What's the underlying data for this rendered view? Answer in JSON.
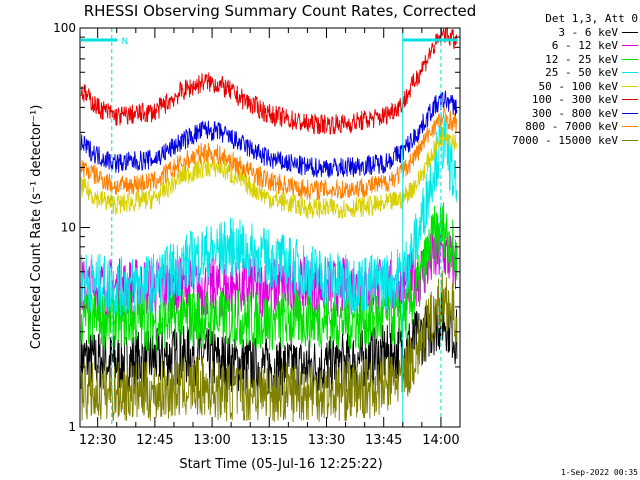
{
  "chart_data": {
    "type": "line",
    "title": "RHESSI Observing Summary Count Rates, Corrected",
    "xlabel": "Start Time (05-Jul-16 12:25:22)",
    "ylabel": "Corrected Count Rate (s⁻¹ detector⁻¹)",
    "y_scale": "log",
    "ylim": [
      1,
      100
    ],
    "y_ticks": [
      "1",
      "10",
      "100"
    ],
    "x_ticks": [
      "12:30",
      "12:45",
      "13:00",
      "13:15",
      "13:30",
      "13:45",
      "14:00"
    ],
    "x_tick_minutes": [
      30,
      45,
      60,
      75,
      90,
      105,
      120
    ],
    "x_range_minutes": [
      25.37,
      125
    ],
    "legend_header": "Det 1,3, Att 0",
    "night_markers_minutes": [
      33.7,
      120
    ],
    "night_bar_labels": [
      "N"
    ],
    "day_bars_minutes": [
      [
        25.6,
        35.2
      ],
      [
        110.0,
        124.3
      ]
    ],
    "day_bar_level": 82,
    "series": [
      {
        "name": "3 - 6 keV",
        "color": "#000000",
        "x": [
          26,
          35,
          45,
          55,
          65,
          75,
          85,
          95,
          105,
          110,
          114,
          118,
          121,
          124
        ],
        "y": [
          2.2,
          2.1,
          2.2,
          2.3,
          2.1,
          2.0,
          2.0,
          2.1,
          2.3,
          2.4,
          2.8,
          3.2,
          3.5,
          2.8
        ]
      },
      {
        "name": "6 - 12 keV",
        "color": "#e000e0",
        "x": [
          26,
          35,
          45,
          55,
          65,
          75,
          85,
          95,
          105,
          110,
          114,
          118,
          121,
          124
        ],
        "y": [
          5.0,
          5.0,
          5.0,
          5.0,
          5.0,
          5.0,
          5.0,
          5.0,
          5.0,
          5.0,
          5.8,
          7.0,
          7.5,
          6.2
        ]
      },
      {
        "name": "12 - 25 keV",
        "color": "#00e000",
        "x": [
          26,
          35,
          45,
          55,
          65,
          75,
          85,
          95,
          105,
          110,
          114,
          118,
          121,
          124
        ],
        "y": [
          3.5,
          3.5,
          3.4,
          3.5,
          3.5,
          3.4,
          3.5,
          3.4,
          3.5,
          3.6,
          5.0,
          9.0,
          10.0,
          7.0
        ]
      },
      {
        "name": "25 - 50 keV",
        "color": "#00e8e8",
        "x": [
          26,
          35,
          45,
          55,
          65,
          75,
          85,
          95,
          105,
          110,
          114,
          118,
          121,
          124
        ],
        "y": [
          5.5,
          5.0,
          5.3,
          7.0,
          8.0,
          7.0,
          6.0,
          5.2,
          5.3,
          5.8,
          9.0,
          20.0,
          28.0,
          15.0
        ]
      },
      {
        "name": "50 - 100 keV",
        "color": "#d8d000",
        "x": [
          26,
          30,
          35,
          45,
          52,
          58,
          62,
          68,
          75,
          85,
          95,
          105,
          110,
          114,
          118,
          121,
          124
        ],
        "y": [
          16,
          14,
          13,
          14,
          18,
          20,
          20,
          17,
          14,
          12.5,
          12.5,
          13,
          14,
          17,
          24,
          30,
          27
        ]
      },
      {
        "name": "100 - 300 keV",
        "color": "#e80000",
        "x": [
          26,
          30,
          35,
          45,
          52,
          58,
          62,
          68,
          75,
          85,
          95,
          105,
          110,
          114,
          118,
          121,
          124
        ],
        "y": [
          48,
          40,
          36,
          38,
          48,
          54,
          52,
          44,
          37,
          33,
          33,
          36,
          42,
          58,
          80,
          95,
          85
        ]
      },
      {
        "name": "300 - 800 keV",
        "color": "#0000e0",
        "x": [
          26,
          30,
          35,
          45,
          52,
          58,
          62,
          68,
          75,
          85,
          95,
          105,
          110,
          114,
          118,
          121,
          124
        ],
        "y": [
          26,
          23,
          21,
          22,
          27,
          31,
          30,
          26,
          22,
          20,
          20,
          21,
          24,
          30,
          40,
          44,
          40
        ]
      },
      {
        "name": "800 - 7000 keV",
        "color": "#ff8000",
        "x": [
          26,
          30,
          35,
          45,
          52,
          58,
          62,
          68,
          75,
          85,
          95,
          105,
          110,
          114,
          118,
          121,
          124
        ],
        "y": [
          20,
          18,
          16,
          17,
          21,
          24,
          23,
          20,
          17,
          15.5,
          15.5,
          16.5,
          19,
          24,
          32,
          36,
          33
        ]
      },
      {
        "name": "7000 - 15000 keV",
        "color": "#808000",
        "x": [
          26,
          35,
          45,
          55,
          65,
          75,
          85,
          95,
          105,
          110,
          114,
          118,
          121,
          124
        ],
        "y": [
          1.5,
          1.5,
          1.5,
          1.6,
          1.5,
          1.5,
          1.5,
          1.5,
          1.6,
          1.8,
          2.4,
          3.8,
          4.5,
          3.5
        ]
      }
    ]
  },
  "footer": {
    "date": "1-Sep-2022 00:35"
  }
}
